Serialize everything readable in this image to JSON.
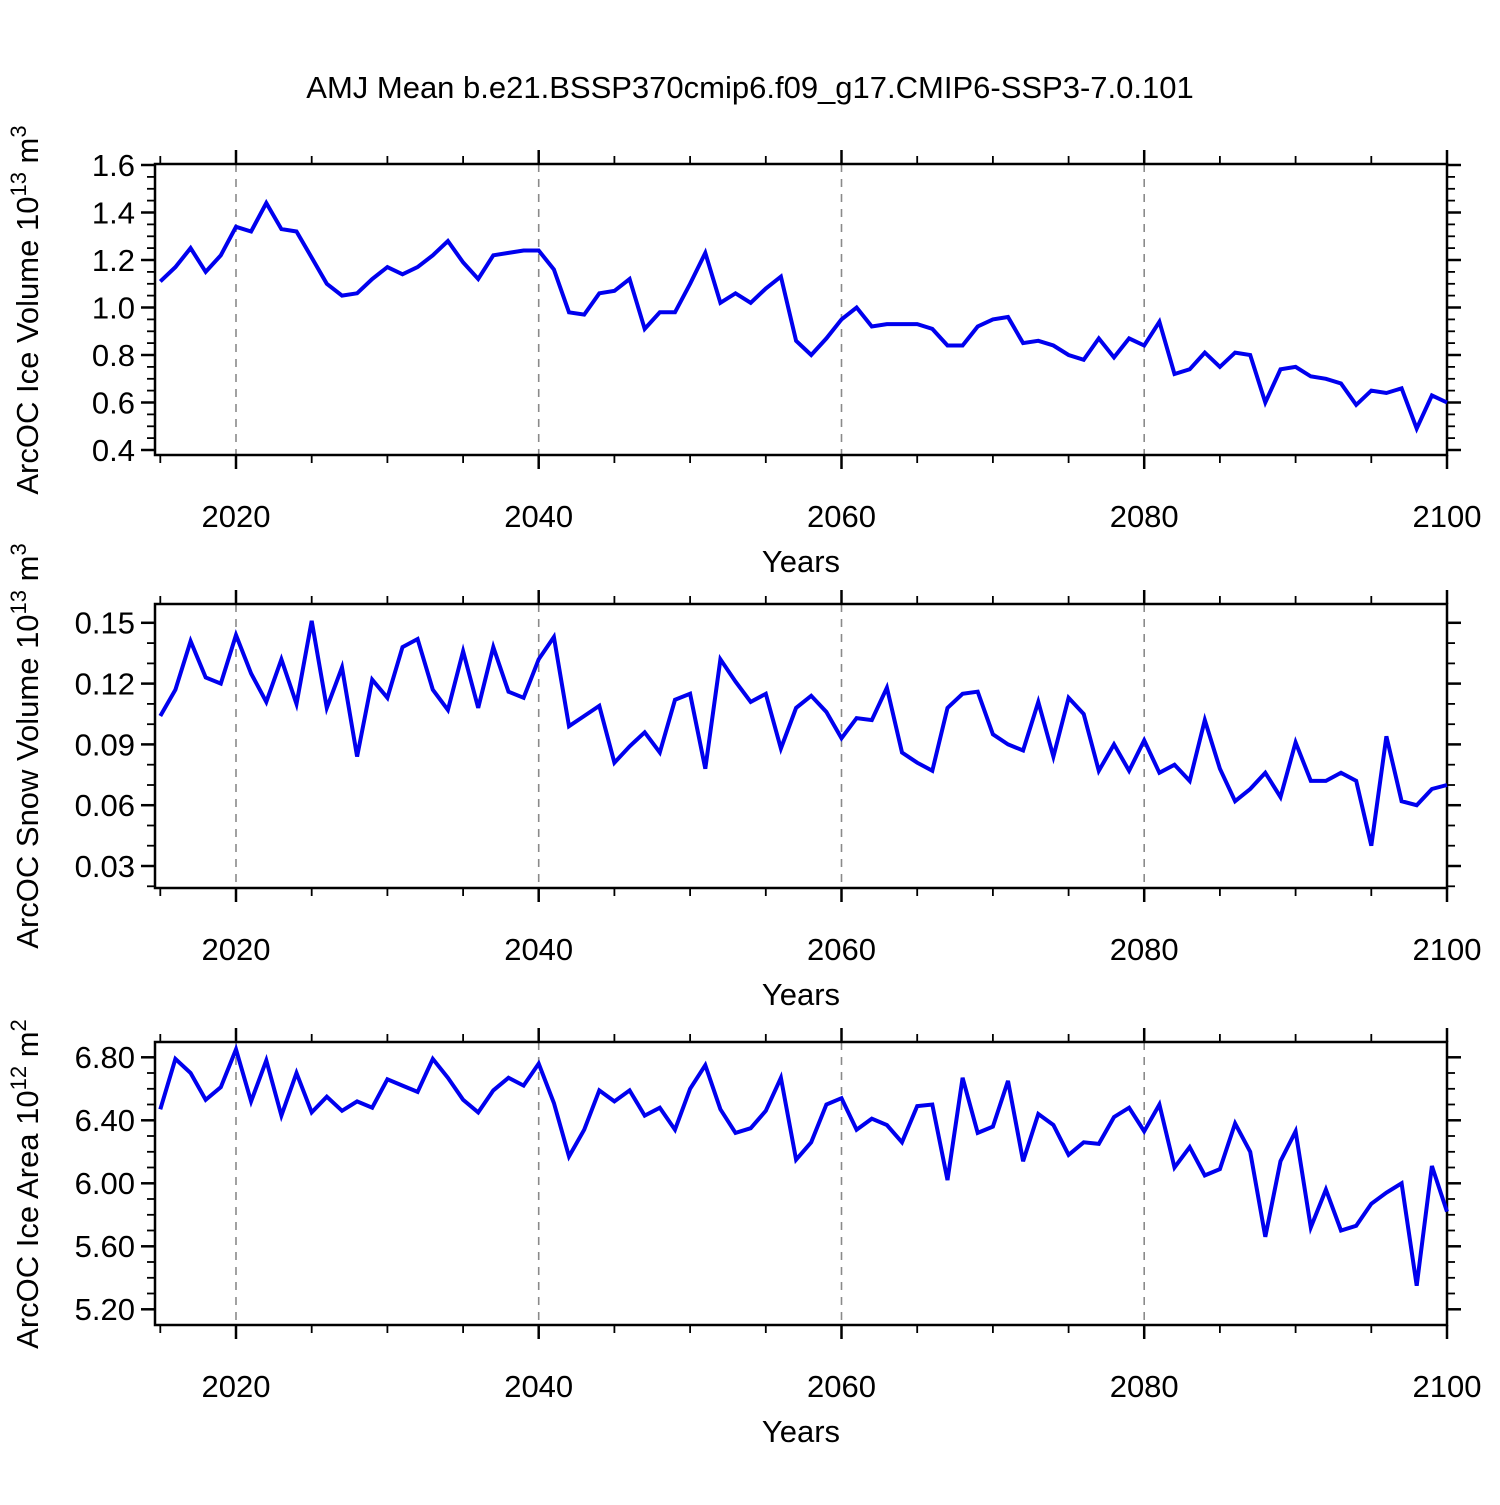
{
  "title": "AMJ Mean b.e21.BSSP370cmip6.f09_g17.CMIP6-SSP3-7.0.101",
  "colors": {
    "line": "#0000ee",
    "frame": "#000000",
    "grid": "#8a8a8a",
    "text": "#000000",
    "background": "#ffffff"
  },
  "x_axis": {
    "label": "Years",
    "major_ticks": [
      2020,
      2040,
      2060,
      2080,
      2100
    ],
    "minor_ticks": [
      2015,
      2025,
      2030,
      2035,
      2045,
      2050,
      2055,
      2065,
      2070,
      2075,
      2085,
      2090,
      2095
    ],
    "gridlines": [
      2020,
      2040,
      2060,
      2080
    ],
    "xlim": [
      2014.65,
      2100
    ]
  },
  "chart_data": [
    {
      "type": "line",
      "name": "ice-volume",
      "ylabel": "ArcOC Ice Volume 10^13 m^3",
      "ylabel_parts": [
        {
          "t": "ArcOC Ice Volume 10"
        },
        {
          "t": "13",
          "sup": true
        },
        {
          "t": " m"
        },
        {
          "t": "3",
          "sup": true
        }
      ],
      "yticks": [
        {
          "v": 0.4,
          "label": "0.4"
        },
        {
          "v": 0.6,
          "label": "0.6"
        },
        {
          "v": 0.8,
          "label": "0.8"
        },
        {
          "v": 1.0,
          "label": "1.0"
        },
        {
          "v": 1.2,
          "label": "1.2"
        },
        {
          "v": 1.4,
          "label": "1.4"
        },
        {
          "v": 1.6,
          "label": "1.6"
        }
      ],
      "yminors": [
        0.45,
        0.5,
        0.55,
        0.65,
        0.7,
        0.75,
        0.85,
        0.9,
        0.95,
        1.05,
        1.1,
        1.15,
        1.25,
        1.3,
        1.35,
        1.45,
        1.5,
        1.55
      ],
      "ylim": [
        0.379,
        1.6043
      ],
      "x_start": 2015,
      "x_step": 1,
      "values": [
        1.11,
        1.17,
        1.25,
        1.15,
        1.22,
        1.34,
        1.32,
        1.44,
        1.33,
        1.32,
        1.21,
        1.1,
        1.05,
        1.06,
        1.12,
        1.17,
        1.14,
        1.17,
        1.22,
        1.28,
        1.19,
        1.12,
        1.22,
        1.23,
        1.24,
        1.24,
        1.16,
        0.98,
        0.97,
        1.06,
        1.07,
        1.12,
        0.91,
        0.98,
        0.98,
        1.1,
        1.23,
        1.02,
        1.06,
        1.02,
        1.08,
        1.13,
        0.86,
        0.8,
        0.87,
        0.95,
        1.0,
        0.92,
        0.93,
        0.93,
        0.93,
        0.91,
        0.84,
        0.84,
        0.92,
        0.95,
        0.96,
        0.85,
        0.86,
        0.84,
        0.8,
        0.78,
        0.87,
        0.79,
        0.87,
        0.84,
        0.94,
        0.72,
        0.74,
        0.81,
        0.75,
        0.81,
        0.8,
        0.6,
        0.74,
        0.75,
        0.71,
        0.7,
        0.68,
        0.59,
        0.65,
        0.64,
        0.66,
        0.49,
        0.63,
        0.6
      ]
    },
    {
      "type": "line",
      "name": "snow-volume",
      "ylabel": "ArcOC Snow Volume 10^13 m^3",
      "ylabel_parts": [
        {
          "t": "ArcOC Snow Volume 10"
        },
        {
          "t": "13",
          "sup": true
        },
        {
          "t": " m"
        },
        {
          "t": "3",
          "sup": true
        }
      ],
      "yticks": [
        {
          "v": 0.03,
          "label": "0.03"
        },
        {
          "v": 0.06,
          "label": "0.06"
        },
        {
          "v": 0.09,
          "label": "0.09"
        },
        {
          "v": 0.12,
          "label": "0.12"
        },
        {
          "v": 0.15,
          "label": "0.15"
        }
      ],
      "yminors": [
        0.02,
        0.04,
        0.05,
        0.07,
        0.08,
        0.1,
        0.11,
        0.13,
        0.14
      ],
      "ylim": [
        0.01915,
        0.15929
      ],
      "x_start": 2015,
      "x_step": 1,
      "values": [
        0.104,
        0.117,
        0.141,
        0.123,
        0.12,
        0.144,
        0.125,
        0.111,
        0.132,
        0.11,
        0.151,
        0.108,
        0.128,
        0.084,
        0.122,
        0.113,
        0.138,
        0.142,
        0.117,
        0.107,
        0.136,
        0.108,
        0.138,
        0.116,
        0.113,
        0.132,
        0.143,
        0.099,
        0.104,
        0.109,
        0.081,
        0.089,
        0.096,
        0.086,
        0.112,
        0.115,
        0.078,
        0.132,
        0.121,
        0.111,
        0.115,
        0.088,
        0.108,
        0.114,
        0.106,
        0.093,
        0.103,
        0.102,
        0.118,
        0.086,
        0.081,
        0.077,
        0.108,
        0.115,
        0.116,
        0.095,
        0.09,
        0.087,
        0.111,
        0.084,
        0.113,
        0.105,
        0.077,
        0.09,
        0.077,
        0.092,
        0.076,
        0.08,
        0.072,
        0.102,
        0.078,
        0.062,
        0.068,
        0.076,
        0.064,
        0.091,
        0.072,
        0.072,
        0.076,
        0.072,
        0.04,
        0.094,
        0.062,
        0.06,
        0.068,
        0.07
      ]
    },
    {
      "type": "line",
      "name": "ice-area",
      "ylabel": "ArcOC Ice Area 10^12 m^2",
      "ylabel_parts": [
        {
          "t": "ArcOC Ice Area 10"
        },
        {
          "t": "12",
          "sup": true
        },
        {
          "t": " m"
        },
        {
          "t": "2",
          "sup": true
        }
      ],
      "yticks": [
        {
          "v": 5.2,
          "label": "5.20"
        },
        {
          "v": 5.6,
          "label": "5.60"
        },
        {
          "v": 6.0,
          "label": "6.00"
        },
        {
          "v": 6.4,
          "label": "6.40"
        },
        {
          "v": 6.8,
          "label": "6.80"
        }
      ],
      "yminors": [
        5.3,
        5.4,
        5.5,
        5.7,
        5.8,
        5.9,
        6.1,
        6.2,
        6.3,
        6.5,
        6.6,
        6.7
      ],
      "ylim": [
        5.1003,
        6.8971
      ],
      "x_start": 2015,
      "x_step": 1,
      "values": [
        6.47,
        6.79,
        6.7,
        6.53,
        6.61,
        6.85,
        6.52,
        6.78,
        6.43,
        6.7,
        6.45,
        6.55,
        6.46,
        6.52,
        6.48,
        6.66,
        6.62,
        6.58,
        6.79,
        6.67,
        6.53,
        6.45,
        6.59,
        6.67,
        6.62,
        6.76,
        6.51,
        6.17,
        6.34,
        6.59,
        6.52,
        6.59,
        6.43,
        6.48,
        6.34,
        6.6,
        6.75,
        6.47,
        6.32,
        6.35,
        6.46,
        6.67,
        6.15,
        6.26,
        6.5,
        6.54,
        6.34,
        6.41,
        6.37,
        6.26,
        6.49,
        6.5,
        6.02,
        6.67,
        6.32,
        6.36,
        6.65,
        6.14,
        6.44,
        6.37,
        6.18,
        6.26,
        6.25,
        6.42,
        6.48,
        6.33,
        6.5,
        6.1,
        6.23,
        6.05,
        6.09,
        6.38,
        6.2,
        5.66,
        6.14,
        6.33,
        5.72,
        5.96,
        5.7,
        5.73,
        5.87,
        5.94,
        6.0,
        5.35,
        6.11,
        5.82
      ]
    }
  ]
}
